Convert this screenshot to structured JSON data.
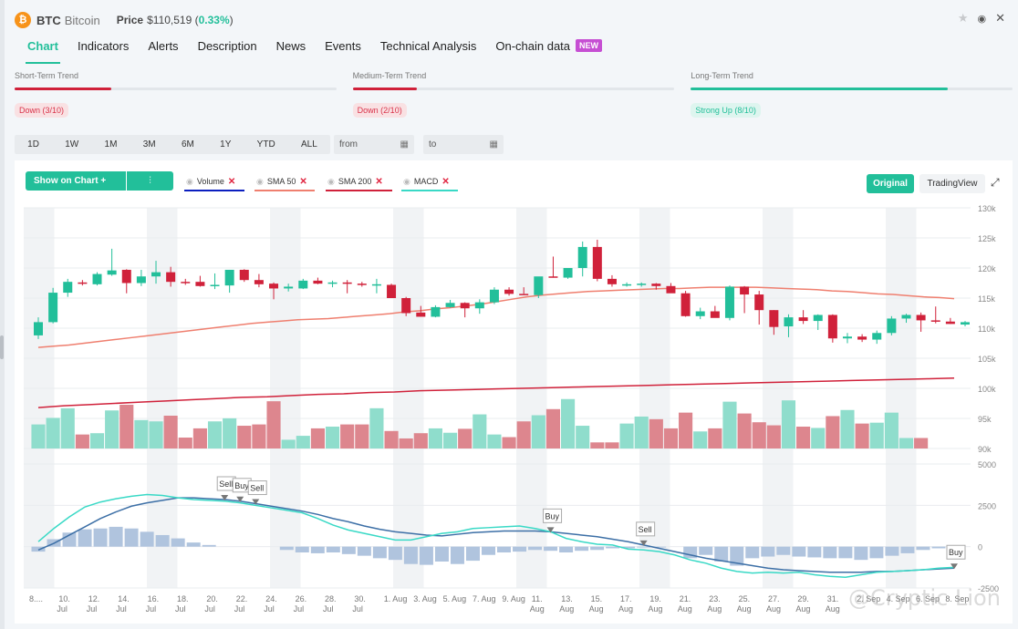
{
  "header": {
    "symbol": "BTC",
    "name": "Bitcoin",
    "coin_icon": "₿",
    "price_label": "Price",
    "price": "$110,519",
    "change_open": "(",
    "change": "0.33%",
    "change_close": ")",
    "icons": {
      "star": "★",
      "eye": "👁",
      "close": "✕"
    }
  },
  "tabs": [
    {
      "label": "Chart",
      "active": true
    },
    {
      "label": "Indicators"
    },
    {
      "label": "Alerts"
    },
    {
      "label": "Description"
    },
    {
      "label": "News"
    },
    {
      "label": "Events"
    },
    {
      "label": "Technical Analysis"
    },
    {
      "label": "On-chain data",
      "badge": "NEW"
    }
  ],
  "trends": [
    {
      "label": "Short-Term Trend",
      "badge": "Down (3/10)",
      "score": 3,
      "max": 10,
      "direction": "down",
      "color": "#d0213a"
    },
    {
      "label": "Medium-Term Trend",
      "badge": "Down (2/10)",
      "score": 2,
      "max": 10,
      "direction": "down",
      "color": "#d0213a"
    },
    {
      "label": "Long-Term Trend",
      "badge": "Strong Up (8/10)",
      "score": 8,
      "max": 10,
      "direction": "up",
      "color": "#22bf9a"
    }
  ],
  "ranges": [
    "1D",
    "1W",
    "1M",
    "3M",
    "6M",
    "1Y",
    "YTD",
    "ALL"
  ],
  "date_inputs": {
    "from": "from",
    "to": "to",
    "calendar_icon": "▦"
  },
  "toolbar": {
    "show_on_chart": "Show on Chart +",
    "candle_icon": "⫶",
    "indicators": [
      {
        "label": "Volume",
        "color": "#0b1fbf"
      },
      {
        "label": "SMA 50",
        "color": "#ef7f6f"
      },
      {
        "label": "SMA 200",
        "color": "#d0213a"
      },
      {
        "label": "MACD",
        "color": "#39d9c6"
      }
    ],
    "remove_icon": "✕",
    "eye_icon": "◉",
    "original": "Original",
    "tradingview": "TradingView",
    "expand_icon": "⤢"
  },
  "watermark": "@Cryptic Lion",
  "colors": {
    "up": "#22bf9a",
    "down": "#d0213a",
    "volUp": "#8fddcc",
    "volDown": "#dd868e",
    "sma50": "#ef7f6f",
    "sma200": "#d0213a",
    "macd": "#39d9c6",
    "signal": "#3c6fa6",
    "hist": "#b0c4de",
    "band": "#f1f3f5",
    "grid": "#e9ecef"
  },
  "chart_data": {
    "type": "candlestick",
    "title": "BTC Bitcoin",
    "x_labels": [
      "8....",
      "10. Jul",
      "12. Jul",
      "14. Jul",
      "16. Jul",
      "18. Jul",
      "20. Jul",
      "22. Jul",
      "24. Jul",
      "26. Jul",
      "28. Jul",
      "30. Jul",
      "1. Aug",
      "3. Aug",
      "5. Aug",
      "7. Aug",
      "9. Aug",
      "11. Aug",
      "13. Aug",
      "15. Aug",
      "17. Aug",
      "19. Aug",
      "21. Aug",
      "23. Aug",
      "25. Aug",
      "27. Aug",
      "29. Aug",
      "31. Aug",
      "2. Sep",
      "4. Sep",
      "6. Sep",
      "8. Sep"
    ],
    "price_axis": {
      "min": 90000,
      "max": 130000,
      "ticks": [
        "90k",
        "95k",
        "100k",
        "105k",
        "110k",
        "115k",
        "120k",
        "125k",
        "130k"
      ]
    },
    "macd_axis": {
      "min": -2500,
      "max": 5000,
      "ticks": [
        "-2500",
        "0",
        "2500",
        "5000"
      ]
    },
    "candles": [
      [
        108800,
        111800,
        108200,
        111000
      ],
      [
        111000,
        116700,
        110800,
        115900
      ],
      [
        115900,
        118200,
        115200,
        117700
      ],
      [
        117600,
        118000,
        117100,
        117400
      ],
      [
        117300,
        119300,
        117100,
        119000
      ],
      [
        118900,
        123200,
        118700,
        119600
      ],
      [
        119700,
        119800,
        115800,
        117500
      ],
      [
        117500,
        119700,
        117000,
        118600
      ],
      [
        118600,
        121200,
        117400,
        119300
      ],
      [
        119300,
        120200,
        116900,
        117700
      ],
      [
        117700,
        118200,
        117200,
        117600
      ],
      [
        117700,
        118700,
        116900,
        117000
      ],
      [
        117000,
        119100,
        116500,
        117200
      ],
      [
        117100,
        119700,
        115900,
        119700
      ],
      [
        119700,
        119800,
        117700,
        118000
      ],
      [
        118000,
        119000,
        116800,
        117300
      ],
      [
        117400,
        117600,
        114800,
        116600
      ],
      [
        116600,
        117400,
        116100,
        116900
      ],
      [
        116600,
        118200,
        116500,
        117900
      ],
      [
        117900,
        118400,
        117300,
        117400
      ],
      [
        117400,
        117900,
        116800,
        117600
      ],
      [
        117600,
        118000,
        115800,
        117400
      ],
      [
        117400,
        117700,
        116900,
        117300
      ],
      [
        117200,
        118200,
        115800,
        117300
      ],
      [
        117200,
        117400,
        115200,
        115000
      ],
      [
        115000,
        115200,
        112000,
        112500
      ],
      [
        112600,
        113700,
        111900,
        111900
      ],
      [
        111900,
        113800,
        111800,
        113500
      ],
      [
        113500,
        114700,
        113400,
        114200
      ],
      [
        114200,
        114300,
        111800,
        113300
      ],
      [
        113300,
        114800,
        112400,
        114300
      ],
      [
        114300,
        116800,
        114000,
        116400
      ],
      [
        116400,
        116800,
        115400,
        115700
      ],
      [
        115700,
        116800,
        115700,
        115500
      ],
      [
        115500,
        118400,
        115000,
        118600
      ],
      [
        118600,
        121900,
        118400,
        118400
      ],
      [
        118400,
        119700,
        118200,
        120000
      ],
      [
        120000,
        124400,
        118600,
        123500
      ],
      [
        123500,
        124700,
        117800,
        118200
      ],
      [
        118200,
        118800,
        116900,
        117300
      ],
      [
        117200,
        117600,
        116900,
        117300
      ],
      [
        117300,
        117600,
        116900,
        117400
      ],
      [
        117400,
        117500,
        116400,
        117000
      ],
      [
        117000,
        117500,
        116400,
        115800
      ],
      [
        115800,
        116200,
        111900,
        112000
      ],
      [
        112000,
        113400,
        111500,
        112800
      ],
      [
        112800,
        113700,
        111800,
        111700
      ],
      [
        111700,
        117100,
        111300,
        116900
      ],
      [
        116900,
        117000,
        112500,
        115600
      ],
      [
        115600,
        116200,
        110600,
        113000
      ],
      [
        113000,
        113000,
        108900,
        110200
      ],
      [
        110300,
        112300,
        108500,
        111800
      ],
      [
        111800,
        113000,
        110700,
        111200
      ],
      [
        111200,
        112300,
        109700,
        112200
      ],
      [
        112200,
        112300,
        107600,
        108300
      ],
      [
        108300,
        109200,
        107500,
        108600
      ],
      [
        108600,
        109000,
        107700,
        108100
      ],
      [
        108100,
        109600,
        107400,
        109200
      ],
      [
        109200,
        112000,
        108800,
        111600
      ],
      [
        111600,
        112400,
        110900,
        112200
      ],
      [
        112200,
        112600,
        109400,
        111300
      ],
      [
        111300,
        113600,
        110800,
        111100
      ],
      [
        111100,
        111700,
        110700,
        110700
      ],
      [
        110600,
        111200,
        110300,
        111000
      ]
    ],
    "volume": [
      0.55,
      0.7,
      0.92,
      0.32,
      0.35,
      0.87,
      1.0,
      0.65,
      0.62,
      0.75,
      0.25,
      0.46,
      0.62,
      0.69,
      0.52,
      0.55,
      1.08,
      0.2,
      0.29,
      0.46,
      0.5,
      0.55,
      0.55,
      0.92,
      0.4,
      0.23,
      0.35,
      0.46,
      0.36,
      0.45,
      0.78,
      0.32,
      0.26,
      0.62,
      0.76,
      0.9,
      1.13,
      0.52,
      0.14,
      0.14,
      0.57,
      0.73,
      0.67,
      0.46,
      0.82,
      0.39,
      0.46,
      1.07,
      0.8,
      0.6,
      0.53,
      1.1,
      0.5,
      0.47,
      0.74,
      0.88,
      0.57,
      0.59,
      0.82,
      0.24,
      0.24
    ],
    "sma50": [
      106800,
      107000,
      107200,
      107500,
      107800,
      108100,
      108400,
      108700,
      109000,
      109300,
      109600,
      109900,
      110200,
      110500,
      110800,
      111000,
      111200,
      111400,
      111500,
      111600,
      111800,
      112000,
      112200,
      112400,
      112700,
      112900,
      113200,
      113400,
      113700,
      114000,
      114400,
      114800,
      115200,
      115500,
      115700,
      115900,
      116100,
      116200,
      116300,
      116400,
      116500,
      116600,
      116600,
      116700,
      116800,
      116800,
      116800,
      116800,
      116700,
      116600,
      116500,
      116400,
      116200,
      116100,
      115900,
      115700,
      115600,
      115400,
      115200,
      115100,
      114900
    ],
    "sma200": [
      96800,
      97100,
      97300,
      97500,
      97700,
      97900,
      98100,
      98300,
      98500,
      98600,
      98800,
      99000,
      99100,
      99300,
      99400,
      99600,
      99700,
      99800,
      99900,
      100000,
      100100,
      100200,
      100300,
      100400,
      100500,
      100600,
      100700,
      100800,
      100900,
      101000,
      101100,
      101200,
      101300,
      101400,
      101500,
      101600,
      101700
    ],
    "macd_line": [
      300,
      1100,
      1800,
      2400,
      2700,
      2900,
      3050,
      3150,
      3100,
      2950,
      2850,
      2800,
      2750,
      2650,
      2500,
      2350,
      2200,
      2050,
      1700,
      1300,
      1000,
      800,
      600,
      400,
      400,
      600,
      800,
      900,
      1100,
      1150,
      1200,
      1250,
      1100,
      900,
      500,
      300,
      150,
      100,
      -150,
      -200,
      -300,
      -500,
      -800,
      -1000,
      -1300,
      -1500,
      -1600,
      -1550,
      -1600,
      -1550,
      -1700,
      -1800,
      -1850,
      -1700,
      -1550,
      -1500,
      -1450,
      -1400,
      -1300,
      -1250
    ],
    "signal_line": [
      -200,
      200,
      700,
      1200,
      1700,
      2100,
      2450,
      2650,
      2800,
      2950,
      2950,
      2900,
      2850,
      2750,
      2600,
      2450,
      2300,
      2150,
      1950,
      1700,
      1500,
      1250,
      1050,
      900,
      800,
      700,
      650,
      750,
      850,
      900,
      950,
      950,
      950,
      900,
      800,
      700,
      600,
      450,
      300,
      100,
      -100,
      -300,
      -500,
      -700,
      -850,
      -1000,
      -1150,
      -1300,
      -1400,
      -1450,
      -1500,
      -1550,
      -1550,
      -1550,
      -1500,
      -1500,
      -1450,
      -1400,
      -1350,
      -1300
    ],
    "histogram": [
      -300,
      450,
      850,
      1050,
      1100,
      1200,
      1100,
      900,
      700,
      500,
      250,
      100,
      0,
      0,
      0,
      0,
      -200,
      -350,
      -400,
      -350,
      -450,
      -550,
      -700,
      -800,
      -1050,
      -1100,
      -900,
      -1050,
      -850,
      -500,
      -350,
      -300,
      -200,
      -250,
      -350,
      -250,
      -200,
      -100,
      -100,
      -50,
      -50,
      0,
      -700,
      -500,
      -900,
      -1150,
      -700,
      -600,
      -500,
      -600,
      -650,
      -700,
      -700,
      -800,
      -700,
      -550,
      -400,
      -200,
      -100,
      0
    ],
    "signals": [
      {
        "label": "Sell",
        "index": 12
      },
      {
        "label": "Buy",
        "index": 13
      },
      {
        "label": "Sell",
        "index": 14
      },
      {
        "label": "Buy",
        "index": 33
      },
      {
        "label": "Sell",
        "index": 39
      },
      {
        "label": "Buy",
        "index": 59
      }
    ],
    "legend": [
      "Volume",
      "SMA 50",
      "SMA 200",
      "MACD"
    ],
    "grid": true
  }
}
